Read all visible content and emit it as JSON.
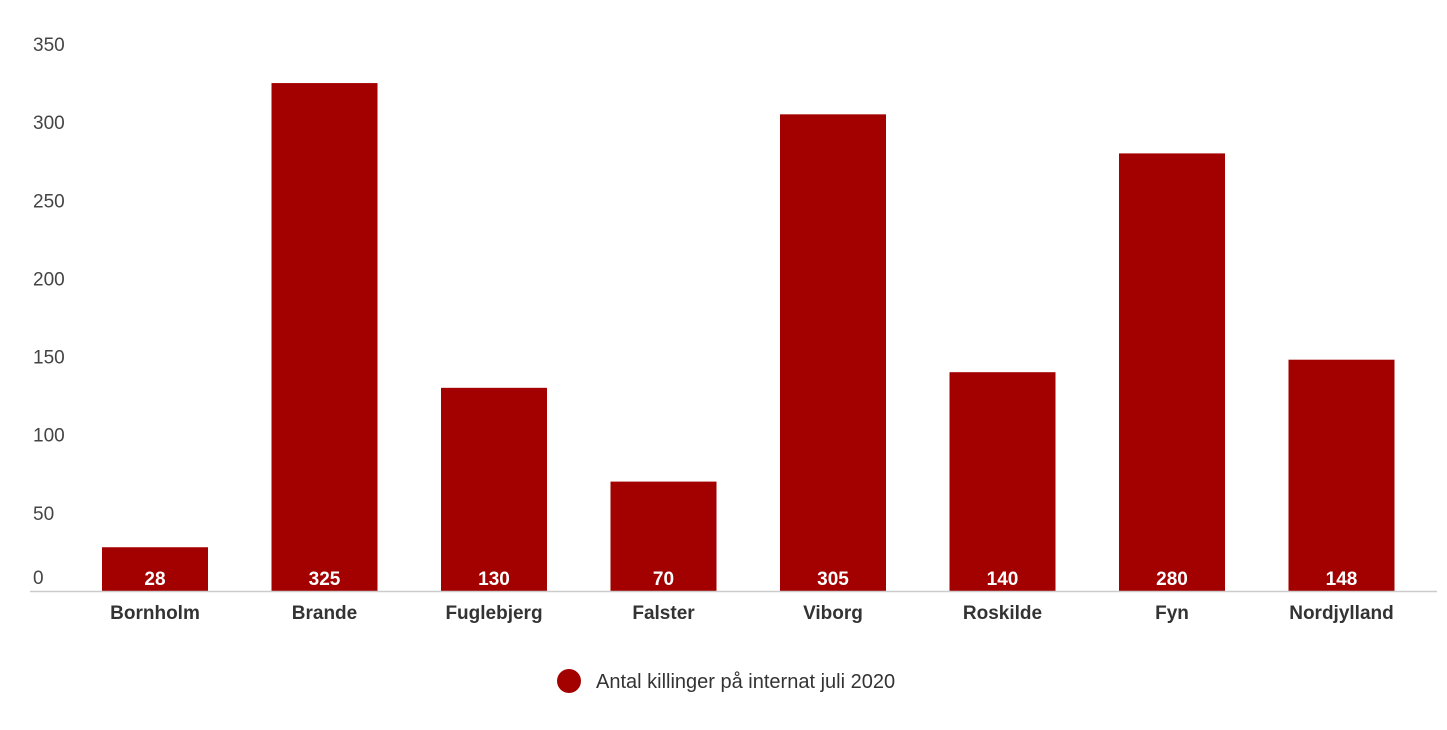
{
  "chart_data": {
    "type": "bar",
    "categories": [
      "Bornholm",
      "Brande",
      "Fuglebjerg",
      "Falster",
      "Viborg",
      "Roskilde",
      "Fyn",
      "Nordjylland"
    ],
    "series": [
      {
        "name": "Antal killinger på internat juli 2020",
        "values": [
          28,
          325,
          130,
          70,
          305,
          140,
          280,
          148
        ],
        "color": "#a30000"
      }
    ],
    "data_labels": [
      "28",
      "325",
      "130",
      "70",
      "305",
      "140",
      "280",
      "148"
    ],
    "ylim": [
      0,
      350
    ],
    "yticks": [
      0,
      50,
      100,
      150,
      200,
      250,
      300,
      350
    ],
    "ytick_labels": [
      "0",
      "50",
      "100",
      "150",
      "200",
      "250",
      "300",
      "350"
    ],
    "grid": false,
    "legend_position": "bottom-center",
    "colors": {
      "bar": "#a30000",
      "axis": "#cccccc"
    }
  }
}
